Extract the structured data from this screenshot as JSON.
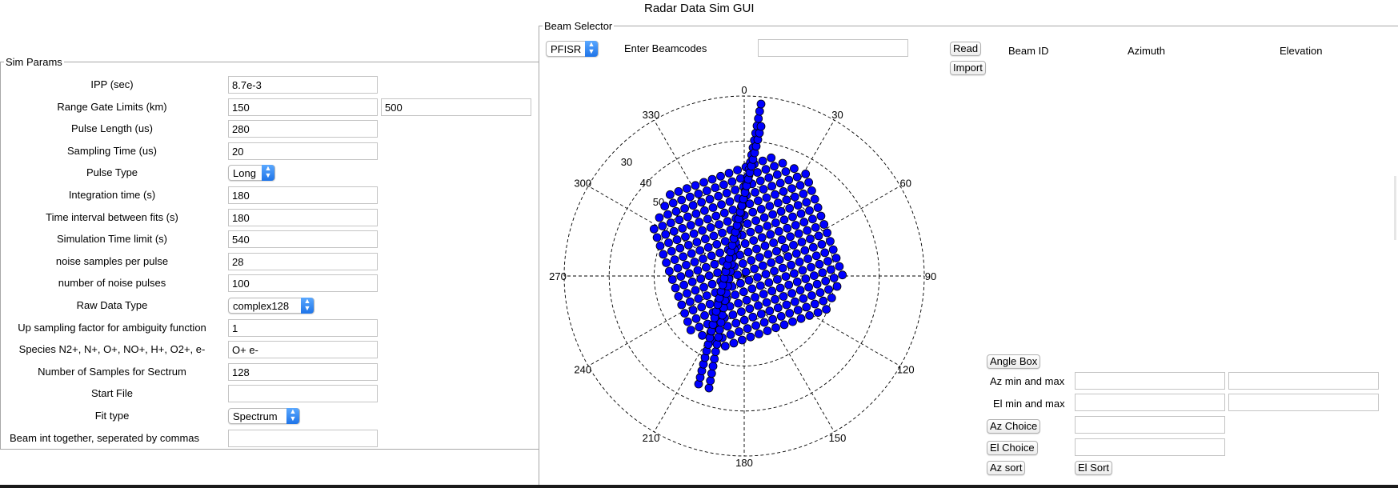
{
  "window": {
    "title": "Radar Data Sim GUI"
  },
  "sim_params": {
    "legend": "Sim Params",
    "rows": [
      {
        "label": "IPP (sec)",
        "kind": "text",
        "value": "8.7e-3"
      },
      {
        "label": "Range Gate Limits (km)",
        "kind": "text2",
        "value": "150",
        "value2": "500"
      },
      {
        "label": "Pulse Length (us)",
        "kind": "text",
        "value": "280"
      },
      {
        "label": "Sampling Time (us)",
        "kind": "text",
        "value": "20"
      },
      {
        "label": "Pulse Type",
        "kind": "combo",
        "value": "Long"
      },
      {
        "label": "Integration time (s)",
        "kind": "text",
        "value": "180"
      },
      {
        "label": "Time interval between fits (s)",
        "kind": "text",
        "value": "180"
      },
      {
        "label": "Simulation Time limit (s)",
        "kind": "text",
        "value": "540"
      },
      {
        "label": "noise samples per pulse",
        "kind": "text",
        "value": "28"
      },
      {
        "label": "number of noise pulses",
        "kind": "text",
        "value": "100"
      },
      {
        "label": "Raw Data Type",
        "kind": "combo",
        "value": "complex128"
      },
      {
        "label": "Up sampling factor for ambiguity function",
        "kind": "text",
        "value": "1"
      },
      {
        "label": "Species N2+, N+, O+, NO+, H+, O2+, e-",
        "kind": "text",
        "value": "O+ e-"
      },
      {
        "label": "Number of Samples for Sectrum",
        "kind": "text",
        "value": "128"
      },
      {
        "label": "Start File",
        "kind": "text",
        "value": ""
      },
      {
        "label": "Fit type",
        "kind": "combo",
        "value": "Spectrum"
      },
      {
        "label": "Beam int together, seperated by commas",
        "kind": "text",
        "value": ""
      }
    ]
  },
  "beam_selector": {
    "legend": "Beam Selector",
    "radar_combo": "PFISR",
    "enter_beamcodes_label": "Enter Beamcodes",
    "beamcodes_value": "",
    "read_button": "Read",
    "import_button": "Import",
    "table_headers": [
      "Beam ID",
      "Azimuth",
      "Elevation"
    ],
    "angle_box_button": "Angle Box",
    "az_min_max_label": "Az min and max",
    "el_min_max_label": "El min and max",
    "az_choice_button": "Az Choice",
    "el_choice_button": "El Choice",
    "az_sort_button": "Az sort",
    "el_sort_button": "El Sort",
    "az_min": "",
    "az_max": "",
    "el_min": "",
    "el_max": "",
    "az_choice": "",
    "el_choice": ""
  },
  "chart_data": {
    "type": "scatter",
    "projection": "polar",
    "theta_zero": "N",
    "theta_direction": "clockwise",
    "angle_ticks": [
      "0",
      "30",
      "60",
      "90",
      "120",
      "150",
      "180",
      "210",
      "240",
      "270",
      "300",
      "330"
    ],
    "radial_tick_labels": [
      "30",
      "40",
      "50"
    ],
    "marker_color": "#0000ff",
    "marker_edge": "#000000",
    "grid": true,
    "point_count_estimate": 480,
    "beam_cluster_note_omitted": true
  },
  "colors": {
    "marker": "#0000ff",
    "combo_arrow": "#2b82f0"
  }
}
